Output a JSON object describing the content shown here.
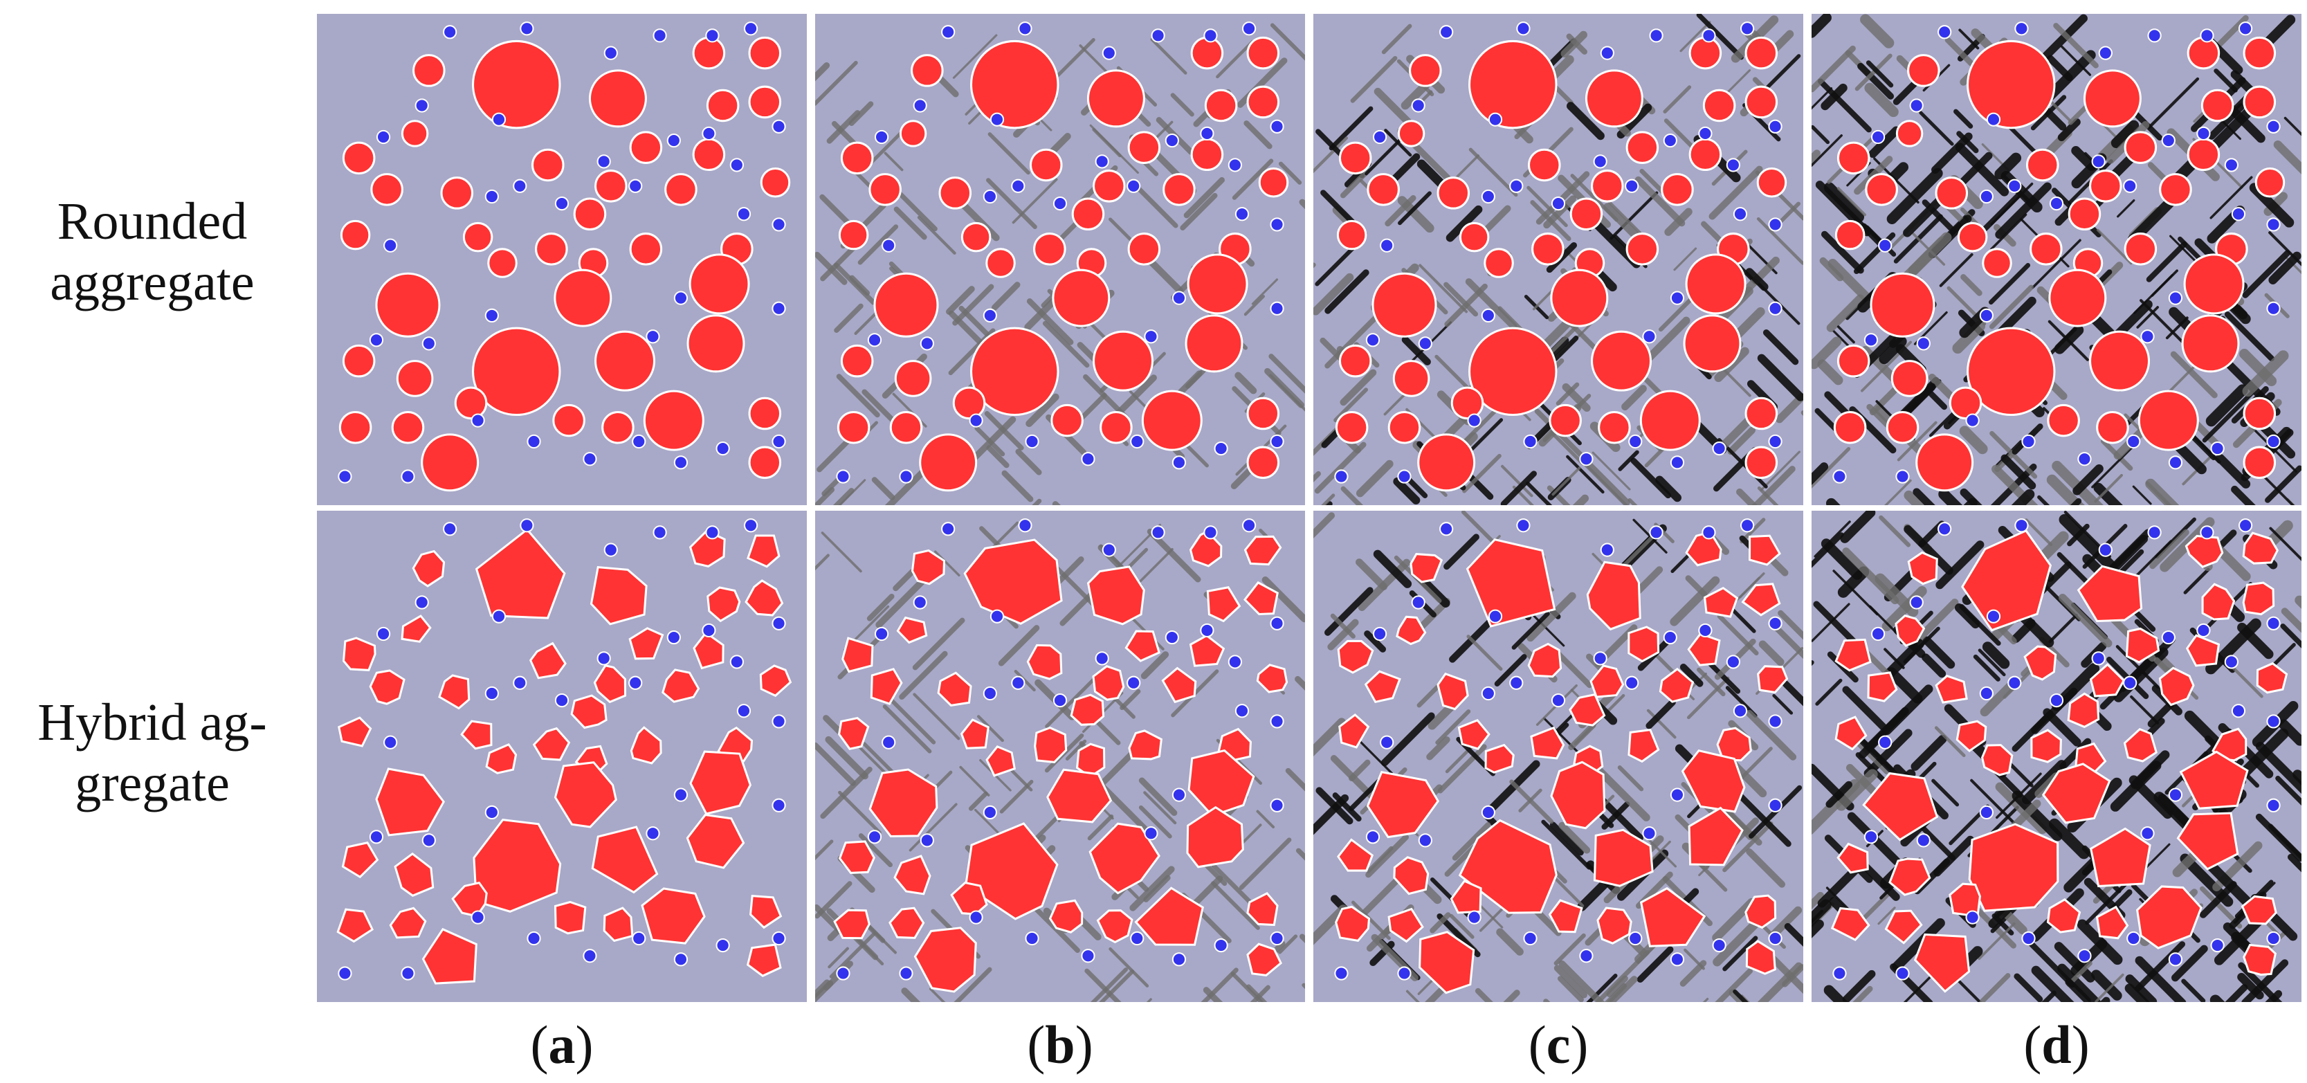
{
  "figure": {
    "rows": [
      {
        "id": "rounded",
        "label": "Rounded\naggregate"
      },
      {
        "id": "hybrid",
        "label": "Hybrid ag-\ngregate"
      }
    ],
    "columns": [
      {
        "id": "a",
        "open": "(",
        "letter": "a",
        "close": ")",
        "damage_level": 0
      },
      {
        "id": "b",
        "open": "(",
        "letter": "b",
        "close": ")",
        "damage_level": 1
      },
      {
        "id": "c",
        "open": "(",
        "letter": "c",
        "close": ")",
        "damage_level": 2
      },
      {
        "id": "d",
        "open": "(",
        "letter": "d",
        "close": ")",
        "damage_level": 3
      }
    ]
  },
  "colors": {
    "matrix": "#a8a8c8",
    "aggregate": "#ff3333",
    "aggregate_edge": "#ffffff",
    "particle": "#3333ee",
    "crack_light": "#6e6e6e",
    "crack_dark": "#101010"
  }
}
